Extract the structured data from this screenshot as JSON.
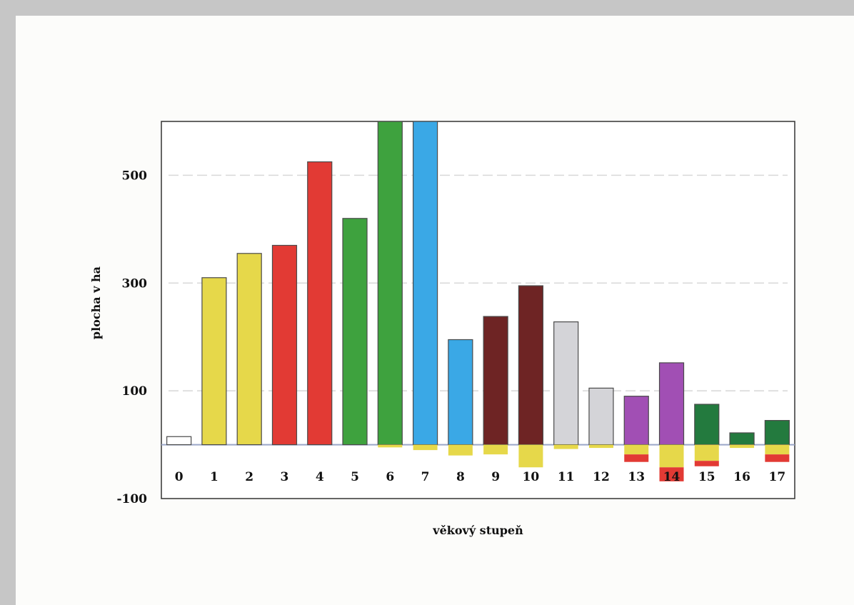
{
  "chart_data": {
    "type": "bar",
    "stacked": true,
    "xlabel": "věkový stupeň",
    "ylabel": "plocha v ha",
    "categories": [
      "0",
      "1",
      "2",
      "3",
      "4",
      "5",
      "6",
      "7",
      "8",
      "9",
      "10",
      "11",
      "12",
      "13",
      "14",
      "15",
      "16",
      "17"
    ],
    "yticks": [
      500,
      300,
      100,
      -100
    ],
    "ylim": [
      -100,
      600
    ],
    "grid": true,
    "legend": "none",
    "positive_values": [
      15,
      310,
      355,
      370,
      525,
      420,
      600,
      600,
      195,
      238,
      295,
      228,
      105,
      90,
      152,
      75,
      22,
      45
    ],
    "positive_colors": [
      "#ffffff",
      "#e6d84a",
      "#e6d84a",
      "#e23a34",
      "#e23a34",
      "#3ea23e",
      "#3ea23e",
      "#3aa8e6",
      "#3aa8e6",
      "#6e2424",
      "#6e2424",
      "#d4d4d8",
      "#d4d4d8",
      "#a14fb4",
      "#a14fb4",
      "#237a3e",
      "#237a3e",
      "#237a3e"
    ],
    "negative_series": [
      {
        "color": "#e6d84a",
        "values": [
          0,
          0,
          0,
          0,
          0,
          0,
          -5,
          -10,
          -20,
          -18,
          -42,
          -8,
          -6,
          -18,
          -42,
          -30,
          -6,
          -18
        ]
      },
      {
        "color": "#e23a34",
        "values": [
          0,
          0,
          0,
          0,
          0,
          0,
          0,
          0,
          0,
          0,
          0,
          0,
          0,
          -14,
          -26,
          -10,
          0,
          -14
        ]
      }
    ]
  }
}
